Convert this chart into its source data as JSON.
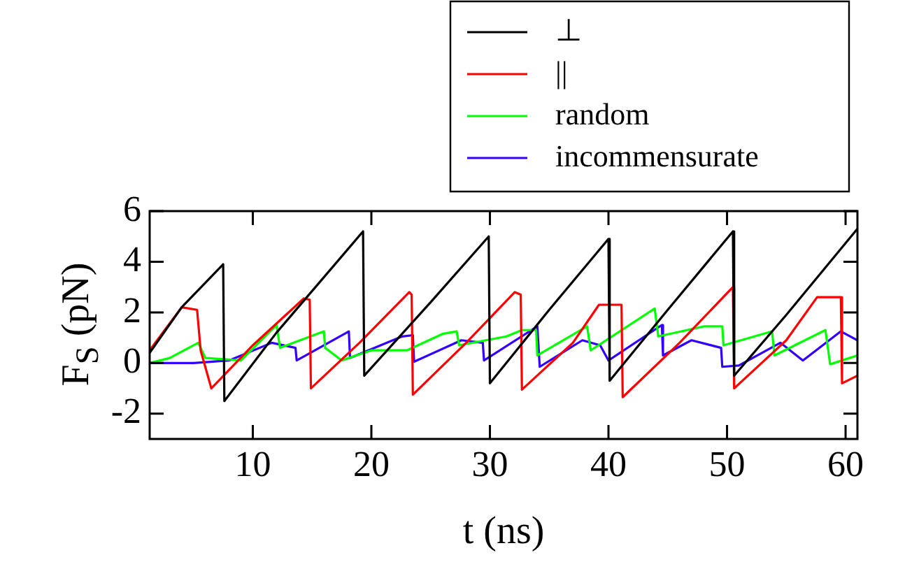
{
  "chart_data": {
    "type": "line",
    "xlabel": "t (ns)",
    "ylabel": "F$_{S}$ (pN)",
    "xlim": [
      1.3,
      61
    ],
    "ylim": [
      -3,
      6
    ],
    "xticks": [
      10,
      20,
      30,
      40,
      50,
      60
    ],
    "yticks": [
      -2,
      0,
      2,
      4,
      6
    ],
    "grid": false,
    "legend": "top right",
    "marker": "none",
    "line_style": "solid",
    "series": [
      {
        "name": "⊥",
        "color": "#000000",
        "x": [
          1.3,
          4,
          7.5,
          7.6,
          12,
          19.3,
          19.4,
          25,
          29.9,
          30,
          35,
          40,
          40.1,
          45,
          50.5,
          50.6,
          55,
          61
        ],
        "values": [
          0.4,
          2.2,
          3.9,
          -1.5,
          1.2,
          5.2,
          -0.5,
          2.4,
          5.0,
          -0.8,
          2.1,
          4.9,
          -0.7,
          2.1,
          5.2,
          -0.5,
          1.9,
          5.3
        ]
      },
      {
        "name": "||",
        "color": "#ff0000",
        "x": [
          1.3,
          4,
          5.3,
          5.6,
          6.5,
          10,
          14.3,
          14.8,
          14.9,
          19,
          23.2,
          23.4,
          23.5,
          28,
          32.1,
          32.6,
          32.7,
          37,
          39.2,
          41.1,
          41.2,
          46,
          50.5,
          50.6,
          55,
          57.6,
          59.6,
          59.7,
          61
        ],
        "values": [
          0.5,
          2.2,
          2.1,
          0.5,
          -1.0,
          0.7,
          2.55,
          2.5,
          -1.0,
          0.8,
          2.8,
          2.7,
          -1.25,
          0.8,
          2.8,
          2.7,
          -1.05,
          0.8,
          2.3,
          2.3,
          -1.35,
          0.8,
          3.0,
          -1.0,
          0.9,
          2.6,
          2.6,
          -0.8,
          -0.5
        ]
      },
      {
        "name": "random",
        "color": "#00ff00",
        "x": [
          1.3,
          3,
          5.4,
          6,
          9,
          12,
          12.3,
          14,
          16,
          16.1,
          17.5,
          20,
          23,
          26,
          27.2,
          27.4,
          31.4,
          32.7,
          33.9,
          34,
          38.2,
          38.5,
          43.9,
          44.2,
          48.1,
          49.6,
          49.7,
          53.8,
          54,
          58.3,
          58.7,
          61
        ],
        "values": [
          0,
          0.2,
          0.8,
          0.2,
          0.1,
          1.5,
          0.6,
          0.9,
          1.25,
          0.6,
          0.1,
          0.5,
          0.5,
          1.15,
          1.25,
          0.7,
          1.05,
          1.3,
          1.3,
          0.3,
          1.45,
          0.5,
          2.15,
          1.05,
          1.45,
          1.45,
          0.7,
          1.25,
          0.3,
          1.3,
          -0.05,
          0.3
        ]
      },
      {
        "name": "incommensurate",
        "color": "#3300ff",
        "x": [
          1.3,
          5,
          8,
          11.6,
          13.6,
          13.7,
          18.1,
          18.2,
          22.6,
          23.5,
          23.6,
          27.6,
          29.4,
          29.5,
          34,
          34.2,
          37.8,
          39.3,
          40,
          44.5,
          44.6,
          47,
          49.5,
          49.6,
          51,
          54.5,
          56.4,
          59.6,
          61
        ],
        "values": [
          0,
          0,
          0.1,
          0.8,
          0.6,
          0.1,
          1.25,
          0.2,
          1.05,
          1.1,
          0.05,
          0.9,
          0.8,
          0.1,
          1.45,
          -0.15,
          0.9,
          0.7,
          0.1,
          1.5,
          0.3,
          0.9,
          0.6,
          -0.15,
          -0.1,
          0.8,
          0.1,
          1.25,
          0.9
        ]
      }
    ]
  }
}
